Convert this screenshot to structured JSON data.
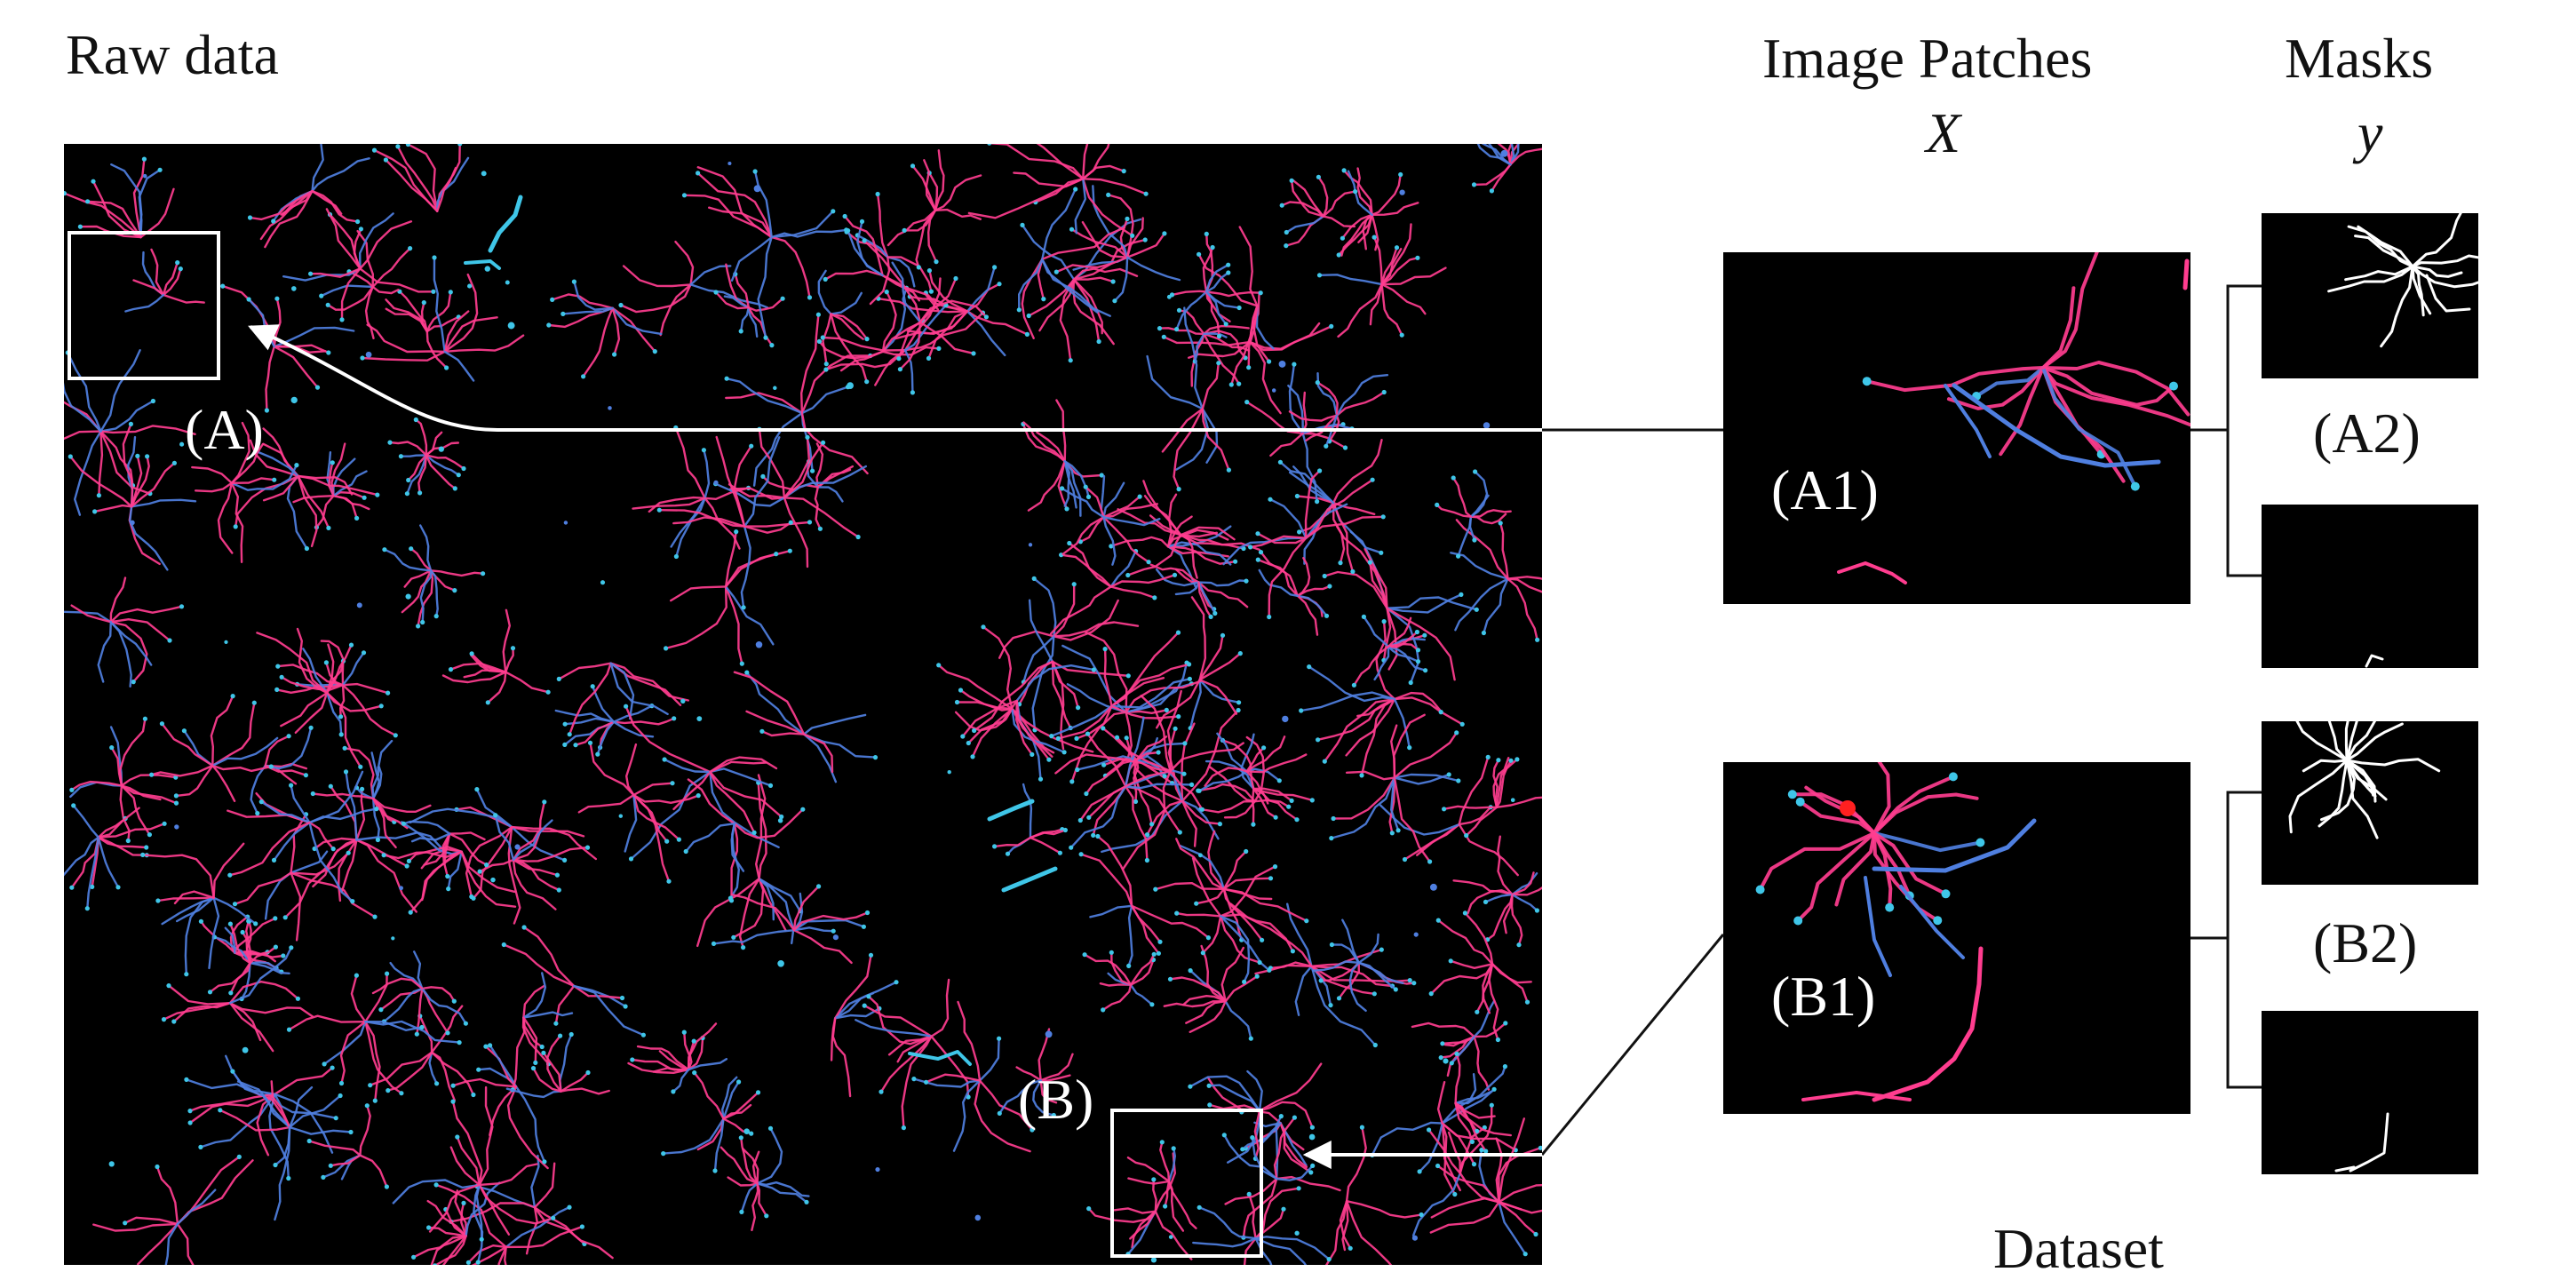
{
  "title_raw": "Raw data",
  "title_patches": "Image Patches",
  "var_x": "X",
  "title_masks": "Masks",
  "var_y": "y",
  "label_a": "(A)",
  "label_b": "(B)",
  "label_a1": "(A1)",
  "label_a2": "(A2)",
  "label_b1": "(B1)",
  "label_b2": "(B2)",
  "footer": "Dataset",
  "colors": {
    "pink": "#ff3d8f",
    "cyan": "#3fc6e8",
    "blue": "#4f7fe0",
    "white": "#ffffff",
    "background": "#000000"
  }
}
